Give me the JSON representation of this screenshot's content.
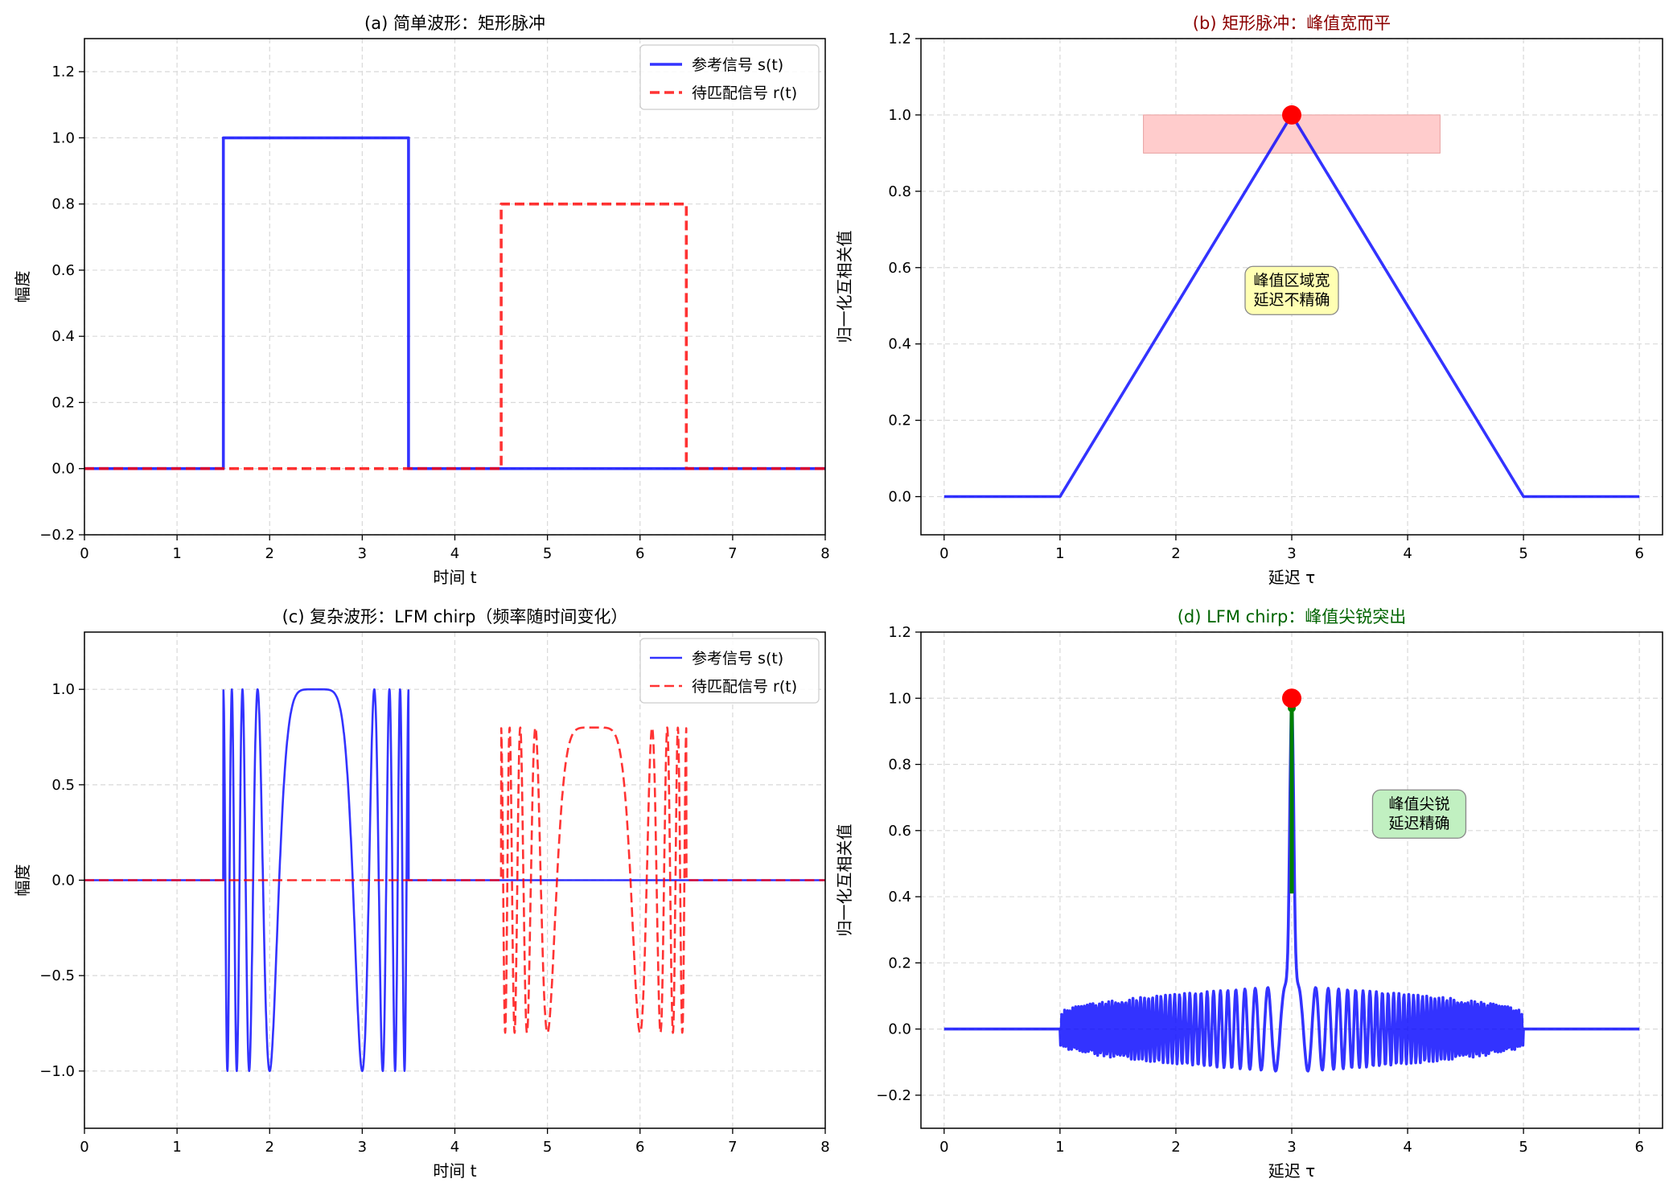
{
  "chart_data": [
    {
      "id": "a",
      "type": "line",
      "title": "(a) 简单波形：矩形脉冲",
      "title_color": "#000000",
      "xlabel": "时间 t",
      "ylabel": "幅度",
      "xlim": [
        0,
        8
      ],
      "ylim": [
        -0.2,
        1.3
      ],
      "xticks": [
        "0",
        "1",
        "2",
        "3",
        "4",
        "5",
        "6",
        "7",
        "8"
      ],
      "yticks": [
        "−0.2",
        "0.0",
        "0.2",
        "0.4",
        "0.6",
        "0.8",
        "1.0",
        "1.2"
      ],
      "grid": true,
      "legend": "upper right",
      "series": [
        {
          "name": "参考信号 s(t)",
          "color": "#0000ff",
          "style": "solid",
          "x": [
            0,
            1.5,
            1.5,
            3.5,
            3.5,
            8
          ],
          "y": [
            0,
            0,
            1,
            1,
            0,
            0
          ]
        },
        {
          "name": "待匹配信号 r(t)",
          "color": "#ff0000",
          "style": "dashed",
          "x": [
            0,
            4.5,
            4.5,
            6.5,
            6.5,
            8
          ],
          "y": [
            0,
            0,
            0.8,
            0.8,
            0,
            0
          ]
        }
      ]
    },
    {
      "id": "b",
      "type": "line",
      "title": "(b) 矩形脉冲：峰值宽而平",
      "title_color": "#8b0000",
      "xlabel": "延迟 τ",
      "ylabel": "归一化互相关值",
      "xlim": [
        -0.2,
        6.2
      ],
      "ylim": [
        -0.1,
        1.2
      ],
      "xticks": [
        "0",
        "1",
        "2",
        "3",
        "4",
        "5",
        "6"
      ],
      "yticks": [
        "0.0",
        "0.2",
        "0.4",
        "0.6",
        "0.8",
        "1.0",
        "1.2"
      ],
      "grid": true,
      "series": [
        {
          "name": "",
          "color": "#0000ff",
          "style": "solid",
          "x": [
            0,
            1,
            3,
            5,
            6
          ],
          "y": [
            0,
            0,
            1,
            0,
            0
          ]
        }
      ],
      "peak": {
        "x": 3,
        "y": 1.0,
        "color": "#ff0000"
      },
      "shaded_band": {
        "x0": 1.72,
        "x1": 4.28,
        "y0": 0.9,
        "y1": 1.0,
        "color": "#ffcccc"
      },
      "annotation": {
        "lines": [
          "峰值区域宽",
          "延迟不精确"
        ],
        "x": 3,
        "y": 0.54,
        "bg": "#ffffb3"
      }
    },
    {
      "id": "c",
      "type": "line",
      "title": "(c) 复杂波形：LFM chirp（频率随时间变化）",
      "title_color": "#000000",
      "xlabel": "时间 t",
      "ylabel": "幅度",
      "xlim": [
        0,
        8
      ],
      "ylim": [
        -1.3,
        1.3
      ],
      "xticks": [
        "0",
        "1",
        "2",
        "3",
        "4",
        "5",
        "6",
        "7",
        "8"
      ],
      "yticks": [
        "−1.0",
        "−0.5",
        "0.0",
        "0.5",
        "1.0"
      ],
      "grid": true,
      "legend": "upper right",
      "series": [
        {
          "name": "参考信号 s(t)",
          "color": "#0000ff",
          "style": "solid",
          "start": 1.5,
          "end": 3.5,
          "amplitude": 1.0
        },
        {
          "name": "待匹配信号 r(t)",
          "color": "#ff0000",
          "style": "dashed",
          "start": 4.5,
          "end": 6.5,
          "amplitude": 0.8
        }
      ]
    },
    {
      "id": "d",
      "type": "line",
      "title": "(d) LFM chirp：峰值尖锐突出",
      "title_color": "#006400",
      "xlabel": "延迟 τ",
      "ylabel": "归一化互相关值",
      "xlim": [
        -0.2,
        6.2
      ],
      "ylim": [
        -0.3,
        1.2
      ],
      "xticks": [
        "0",
        "1",
        "2",
        "3",
        "4",
        "5",
        "6"
      ],
      "yticks": [
        "−0.2",
        "0.0",
        "0.2",
        "0.4",
        "0.6",
        "0.8",
        "1.0",
        "1.2"
      ],
      "grid": true,
      "series": [
        {
          "name": "",
          "color": "#0000ff",
          "style": "solid"
        }
      ],
      "peak": {
        "x": 3,
        "y": 1.0,
        "color": "#ff0000"
      },
      "stem": {
        "x": 3,
        "y0": 0.41,
        "y1": 0.97,
        "color": "#008000"
      },
      "annotation": {
        "lines": [
          "峰值尖锐",
          "延迟精确"
        ],
        "x": 4.1,
        "y": 0.65,
        "bg": "#c1f0c1"
      }
    }
  ]
}
